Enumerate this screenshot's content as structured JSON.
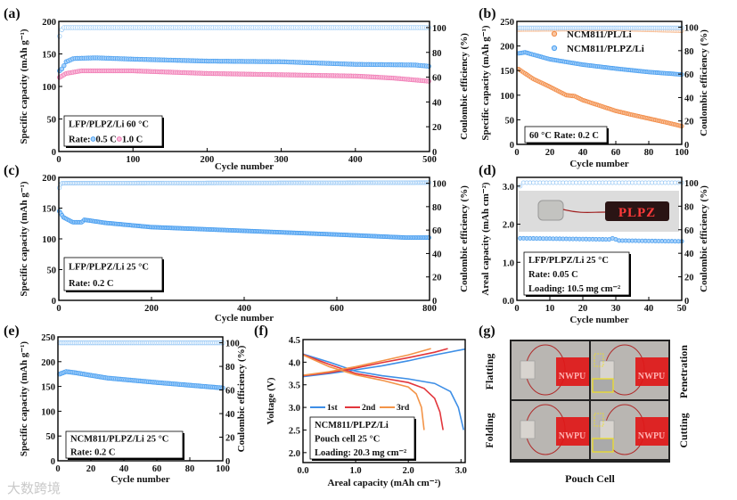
{
  "watermark": "大数跨境",
  "colors": {
    "blue": "#4a9ff0",
    "blue_fill": "#a9d2fa",
    "pink": "#f07ab4",
    "pink_fill": "#f9bedb",
    "orange": "#f28a44",
    "orange_fill": "#f9c6a2",
    "ce": "#9ccaf5",
    "ce_orange": "#f5b98f",
    "first": "#3d8ee6",
    "second": "#e2363c",
    "third": "#f39448"
  },
  "chart_data": [
    {
      "panel_label": "(a)",
      "type": "scatter",
      "xlabel": "Cycle number",
      "ylabel": "Specific capacity (mAh g⁻¹)",
      "y2label": "Coulombic efficiency (%)",
      "xlim": [
        0,
        500
      ],
      "ylim": [
        0,
        200
      ],
      "y2lim": [
        0,
        105
      ],
      "xticks": [
        0,
        100,
        200,
        300,
        400,
        500
      ],
      "yticks": [
        0,
        50,
        100,
        150,
        200
      ],
      "y2ticks": [
        0,
        20,
        40,
        60,
        80,
        100
      ],
      "box_lines": [
        [
          {
            "text": "LFP/PLPZ/Li  60 °C"
          }
        ],
        [
          {
            "text": "Rate: "
          },
          {
            "marker": "blue"
          },
          {
            "text": " 0.5 C "
          },
          {
            "marker": "pink"
          },
          {
            "text": " 1.0 C"
          }
        ]
      ],
      "series": [
        {
          "name": "0.5 C capacity",
          "axis": "left",
          "color": "blue",
          "points": [
            [
              1,
              124
            ],
            [
              5,
              128
            ],
            [
              10,
              138
            ],
            [
              20,
              143
            ],
            [
              50,
              144
            ],
            [
              100,
              142
            ],
            [
              200,
              139
            ],
            [
              300,
              138
            ],
            [
              400,
              134
            ],
            [
              480,
              133
            ],
            [
              500,
              131
            ]
          ]
        },
        {
          "name": "1.0 C capacity",
          "axis": "left",
          "color": "pink",
          "points": [
            [
              1,
              114
            ],
            [
              10,
              120
            ],
            [
              30,
              124
            ],
            [
              100,
              124
            ],
            [
              200,
              120
            ],
            [
              300,
              118
            ],
            [
              400,
              116
            ],
            [
              450,
              113
            ],
            [
              500,
              108
            ]
          ]
        },
        {
          "name": "0.5 C CE",
          "axis": "right",
          "color": "ce",
          "points": [
            [
              1,
              93
            ],
            [
              5,
              100
            ],
            [
              500,
              100
            ]
          ]
        }
      ],
      "step": 3
    },
    {
      "panel_label": "(b)",
      "type": "scatter",
      "xlabel": "Cycle number",
      "ylabel": "Specific capacity (mAh g⁻¹)",
      "y2label": "Coulombic efficiency (%)",
      "xlim": [
        0,
        100
      ],
      "ylim": [
        0,
        250
      ],
      "y2lim": [
        0,
        105
      ],
      "xticks": [
        0,
        20,
        40,
        60,
        80,
        100
      ],
      "yticks": [
        0,
        50,
        100,
        150,
        200,
        250
      ],
      "y2ticks": [
        0,
        20,
        40,
        60,
        80,
        100
      ],
      "legend": [
        {
          "name": "NCM811/PL/Li",
          "color": "orange"
        },
        {
          "name": "NCM811/PLPZ/Li",
          "color": "blue"
        }
      ],
      "box_lines": [
        [
          {
            "text": "60 °C Rate: 0.2 C"
          }
        ]
      ],
      "series": [
        {
          "name": "NCM811/PL/Li CE",
          "axis": "right",
          "color": "ce_orange",
          "points": [
            [
              1,
              98
            ],
            [
              60,
              98.5
            ],
            [
              100,
              97
            ]
          ]
        },
        {
          "name": "NCM811/PLPZ/Li CE",
          "axis": "right",
          "color": "ce",
          "points": [
            [
              1,
              99.5
            ],
            [
              100,
              99.5
            ]
          ]
        },
        {
          "name": "NCM811/PL/Li",
          "axis": "left",
          "color": "orange",
          "points": [
            [
              1,
              153
            ],
            [
              10,
              133
            ],
            [
              20,
              117
            ],
            [
              30,
              100
            ],
            [
              35,
              98
            ],
            [
              40,
              90
            ],
            [
              60,
              68
            ],
            [
              70,
              60
            ],
            [
              90,
              45
            ],
            [
              100,
              37
            ]
          ]
        },
        {
          "name": "NCM811/PLPZ/Li",
          "axis": "left",
          "color": "blue",
          "points": [
            [
              1,
              185
            ],
            [
              5,
              187
            ],
            [
              20,
              173
            ],
            [
              40,
              162
            ],
            [
              60,
              154
            ],
            [
              80,
              147
            ],
            [
              100,
              142
            ]
          ]
        }
      ],
      "step": 1
    },
    {
      "panel_label": "(c)",
      "type": "scatter",
      "xlabel": "Cycle number",
      "ylabel": "Specific capacity (mAh g⁻¹)",
      "y2label": "Coulombic efficiency (%)",
      "xlim": [
        0,
        800
      ],
      "ylim": [
        0,
        200
      ],
      "y2lim": [
        0,
        105
      ],
      "xticks": [
        0,
        200,
        400,
        600,
        800
      ],
      "yticks": [
        0,
        50,
        100,
        150,
        200
      ],
      "y2ticks": [
        0,
        20,
        40,
        60,
        80,
        100
      ],
      "box_lines": [
        [
          {
            "text": "LFP/PLPZ/Li  25 °C"
          }
        ],
        [
          {
            "text": "Rate: 0.2 C"
          }
        ]
      ],
      "series": [
        {
          "name": "CE",
          "axis": "right",
          "color": "ce",
          "points": [
            [
              1,
              96
            ],
            [
              5,
              100
            ],
            [
              800,
              100.5
            ]
          ]
        },
        {
          "name": "Capacity",
          "axis": "left",
          "color": "blue",
          "points": [
            [
              1,
              145
            ],
            [
              10,
              135
            ],
            [
              30,
              127
            ],
            [
              50,
              127
            ],
            [
              55,
              131
            ],
            [
              100,
              126
            ],
            [
              200,
              119
            ],
            [
              400,
              113
            ],
            [
              600,
              107
            ],
            [
              750,
              102
            ],
            [
              800,
              102
            ]
          ]
        }
      ],
      "step": 3
    },
    {
      "panel_label": "(d)",
      "type": "scatter",
      "xlabel": "Cycle number",
      "ylabel": "Areal capacity (mAh cm⁻²)",
      "y2label": "Coulombic efficiency (%)",
      "xlim": [
        0,
        50
      ],
      "ylim": [
        0,
        3.23
      ],
      "y2lim": [
        0,
        104.5
      ],
      "xticks": [
        0,
        10,
        20,
        30,
        40,
        50
      ],
      "yticks": [
        "0.0",
        "1.0",
        "2.0",
        "3.0"
      ],
      "y2ticks": [
        0,
        20,
        40,
        60,
        80,
        100
      ],
      "inset_text": "PLPZ",
      "box_lines": [
        [
          {
            "text": "LFP/PLPZ/Li  25 °C"
          }
        ],
        [
          {
            "text": "Rate: 0.05 C"
          }
        ],
        [
          {
            "text": "Loading: 10.5 mg cm⁻²"
          }
        ]
      ],
      "series": [
        {
          "name": "CE",
          "axis": "right",
          "color": "ce",
          "points": [
            [
              1,
              97
            ],
            [
              2,
              100
            ],
            [
              50,
              100
            ]
          ]
        },
        {
          "name": "Areal capacity",
          "axis": "left",
          "color": "blue",
          "points": [
            [
              1,
              1.63
            ],
            [
              10,
              1.62
            ],
            [
              28,
              1.6
            ],
            [
              29,
              1.63
            ],
            [
              31,
              1.57
            ],
            [
              40,
              1.56
            ],
            [
              50,
              1.55
            ]
          ]
        }
      ],
      "step": 1
    },
    {
      "panel_label": "(e)",
      "type": "scatter",
      "xlabel": "Cycle number",
      "ylabel": "Specific capacity (mAh g⁻¹)",
      "y2label": "Coulombic efficiency (%)",
      "xlim": [
        0,
        100
      ],
      "ylim": [
        0,
        250
      ],
      "y2lim": [
        0,
        105
      ],
      "xticks": [
        0,
        20,
        40,
        60,
        80,
        100
      ],
      "yticks": [
        0,
        50,
        100,
        150,
        200,
        250
      ],
      "y2ticks": [
        0,
        20,
        40,
        60,
        80,
        100
      ],
      "box_lines": [
        [
          {
            "text": "NCM811/PLPZ/Li  25 °C"
          }
        ],
        [
          {
            "text": "Rate: 0.2 C"
          }
        ]
      ],
      "series": [
        {
          "name": "CE",
          "axis": "right",
          "color": "ce",
          "points": [
            [
              1,
              100
            ],
            [
              100,
              100
            ]
          ]
        },
        {
          "name": "Capacity",
          "axis": "left",
          "color": "blue",
          "points": [
            [
              1,
              175
            ],
            [
              5,
              180
            ],
            [
              10,
              178
            ],
            [
              30,
              167
            ],
            [
              60,
              158
            ],
            [
              100,
              147
            ]
          ]
        }
      ],
      "step": 1
    },
    {
      "panel_label": "(f)",
      "type": "line",
      "xlabel": "Areal capacity (mAh cm⁻²)",
      "ylabel": "Voltage (V)",
      "xlim": [
        0,
        3.08
      ],
      "ylim": [
        1.78,
        4.5
      ],
      "xticks": [
        "0.0",
        "1.0",
        "2.0",
        "3.0"
      ],
      "yticks": [
        "2.0",
        "2.5",
        "3.0",
        "3.5",
        "4.0",
        "4.5"
      ],
      "legend": [
        {
          "name": "1st",
          "color": "first"
        },
        {
          "name": "2nd",
          "color": "second"
        },
        {
          "name": "3rd",
          "color": "third"
        }
      ],
      "box_lines": [
        [
          {
            "text": "NCM811/PLPZ/Li"
          }
        ],
        [
          {
            "text": "Pouch cell 25 °C"
          }
        ],
        [
          {
            "text": "Loading: 20.3 mg cm⁻²"
          }
        ]
      ],
      "series": [
        {
          "name": "1st charge",
          "color": "first",
          "points": [
            [
              0,
              3.68
            ],
            [
              0.5,
              3.75
            ],
            [
              1,
              3.83
            ],
            [
              1.5,
              3.92
            ],
            [
              2,
              4.03
            ],
            [
              2.5,
              4.16
            ],
            [
              3.08,
              4.29
            ]
          ]
        },
        {
          "name": "1st discharge",
          "color": "first",
          "points": [
            [
              0,
              4.18
            ],
            [
              0.5,
              4.0
            ],
            [
              1,
              3.8
            ],
            [
              1.5,
              3.7
            ],
            [
              2,
              3.63
            ],
            [
              2.5,
              3.53
            ],
            [
              2.8,
              3.35
            ],
            [
              2.95,
              3.0
            ],
            [
              3.05,
              2.5
            ]
          ]
        },
        {
          "name": "2nd charge",
          "color": "second",
          "points": [
            [
              0,
              3.7
            ],
            [
              0.5,
              3.77
            ],
            [
              1,
              3.87
            ],
            [
              1.5,
              3.99
            ],
            [
              2,
              4.1
            ],
            [
              2.5,
              4.22
            ],
            [
              2.75,
              4.3
            ]
          ]
        },
        {
          "name": "2nd discharge",
          "color": "second",
          "points": [
            [
              0,
              4.17
            ],
            [
              0.5,
              3.95
            ],
            [
              1,
              3.75
            ],
            [
              1.5,
              3.65
            ],
            [
              2,
              3.55
            ],
            [
              2.3,
              3.42
            ],
            [
              2.5,
              3.2
            ],
            [
              2.6,
              2.9
            ],
            [
              2.66,
              2.5
            ]
          ]
        },
        {
          "name": "3rd charge",
          "color": "third",
          "points": [
            [
              0,
              3.71
            ],
            [
              0.5,
              3.79
            ],
            [
              1,
              3.9
            ],
            [
              1.5,
              4.03
            ],
            [
              2,
              4.16
            ],
            [
              2.43,
              4.3
            ]
          ]
        },
        {
          "name": "3rd discharge",
          "color": "third",
          "points": [
            [
              0,
              4.16
            ],
            [
              0.5,
              3.9
            ],
            [
              1,
              3.72
            ],
            [
              1.5,
              3.6
            ],
            [
              2,
              3.45
            ],
            [
              2.15,
              3.3
            ],
            [
              2.25,
              3.0
            ],
            [
              2.3,
              2.5
            ]
          ]
        }
      ]
    }
  ],
  "panel_g": {
    "panel_label": "(g)",
    "caption": "Pouch Cell",
    "labels": [
      "Flatting",
      "Penetration",
      "Folding",
      "Cutting"
    ],
    "led_text": "NWPU"
  }
}
